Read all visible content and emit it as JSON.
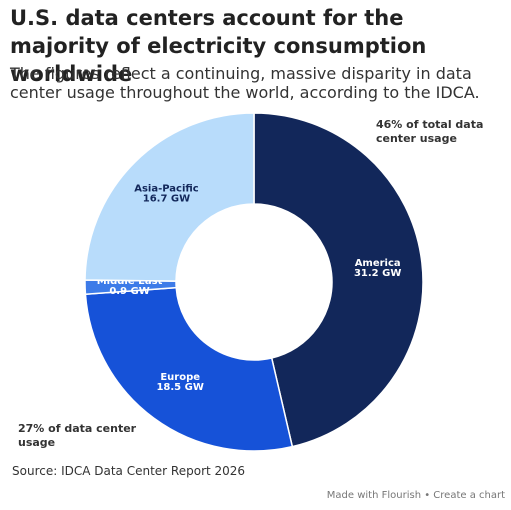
{
  "chart_data": {
    "type": "donut",
    "title": "U.S. data centers account for the majority of electricity consumption worldwide",
    "subtitle": "The figures reflect a continuing, massive disparity in data center usage throughout the world, according to the IDCA.",
    "categories": [
      "America",
      "Europe",
      "Middle East",
      "Asia-Pacific"
    ],
    "values": [
      31.2,
      18.5,
      0.9,
      16.7
    ],
    "value_labels": [
      "31.2 GW",
      "18.5 GW",
      "0.9 GW",
      "16.7 GW"
    ],
    "colors": [
      "#12275a",
      "#1652d8",
      "#3d7be8",
      "#b8dcfb"
    ],
    "label_colors": [
      "#ffffff",
      "#ffffff",
      "#ffffff",
      "#12275a"
    ],
    "annotations": [
      "46% of total data center usage",
      "27% of data center usage"
    ],
    "source": "Source: IDCA Data Center Report 2026",
    "credit": "Made with Flourish • Create a chart"
  }
}
